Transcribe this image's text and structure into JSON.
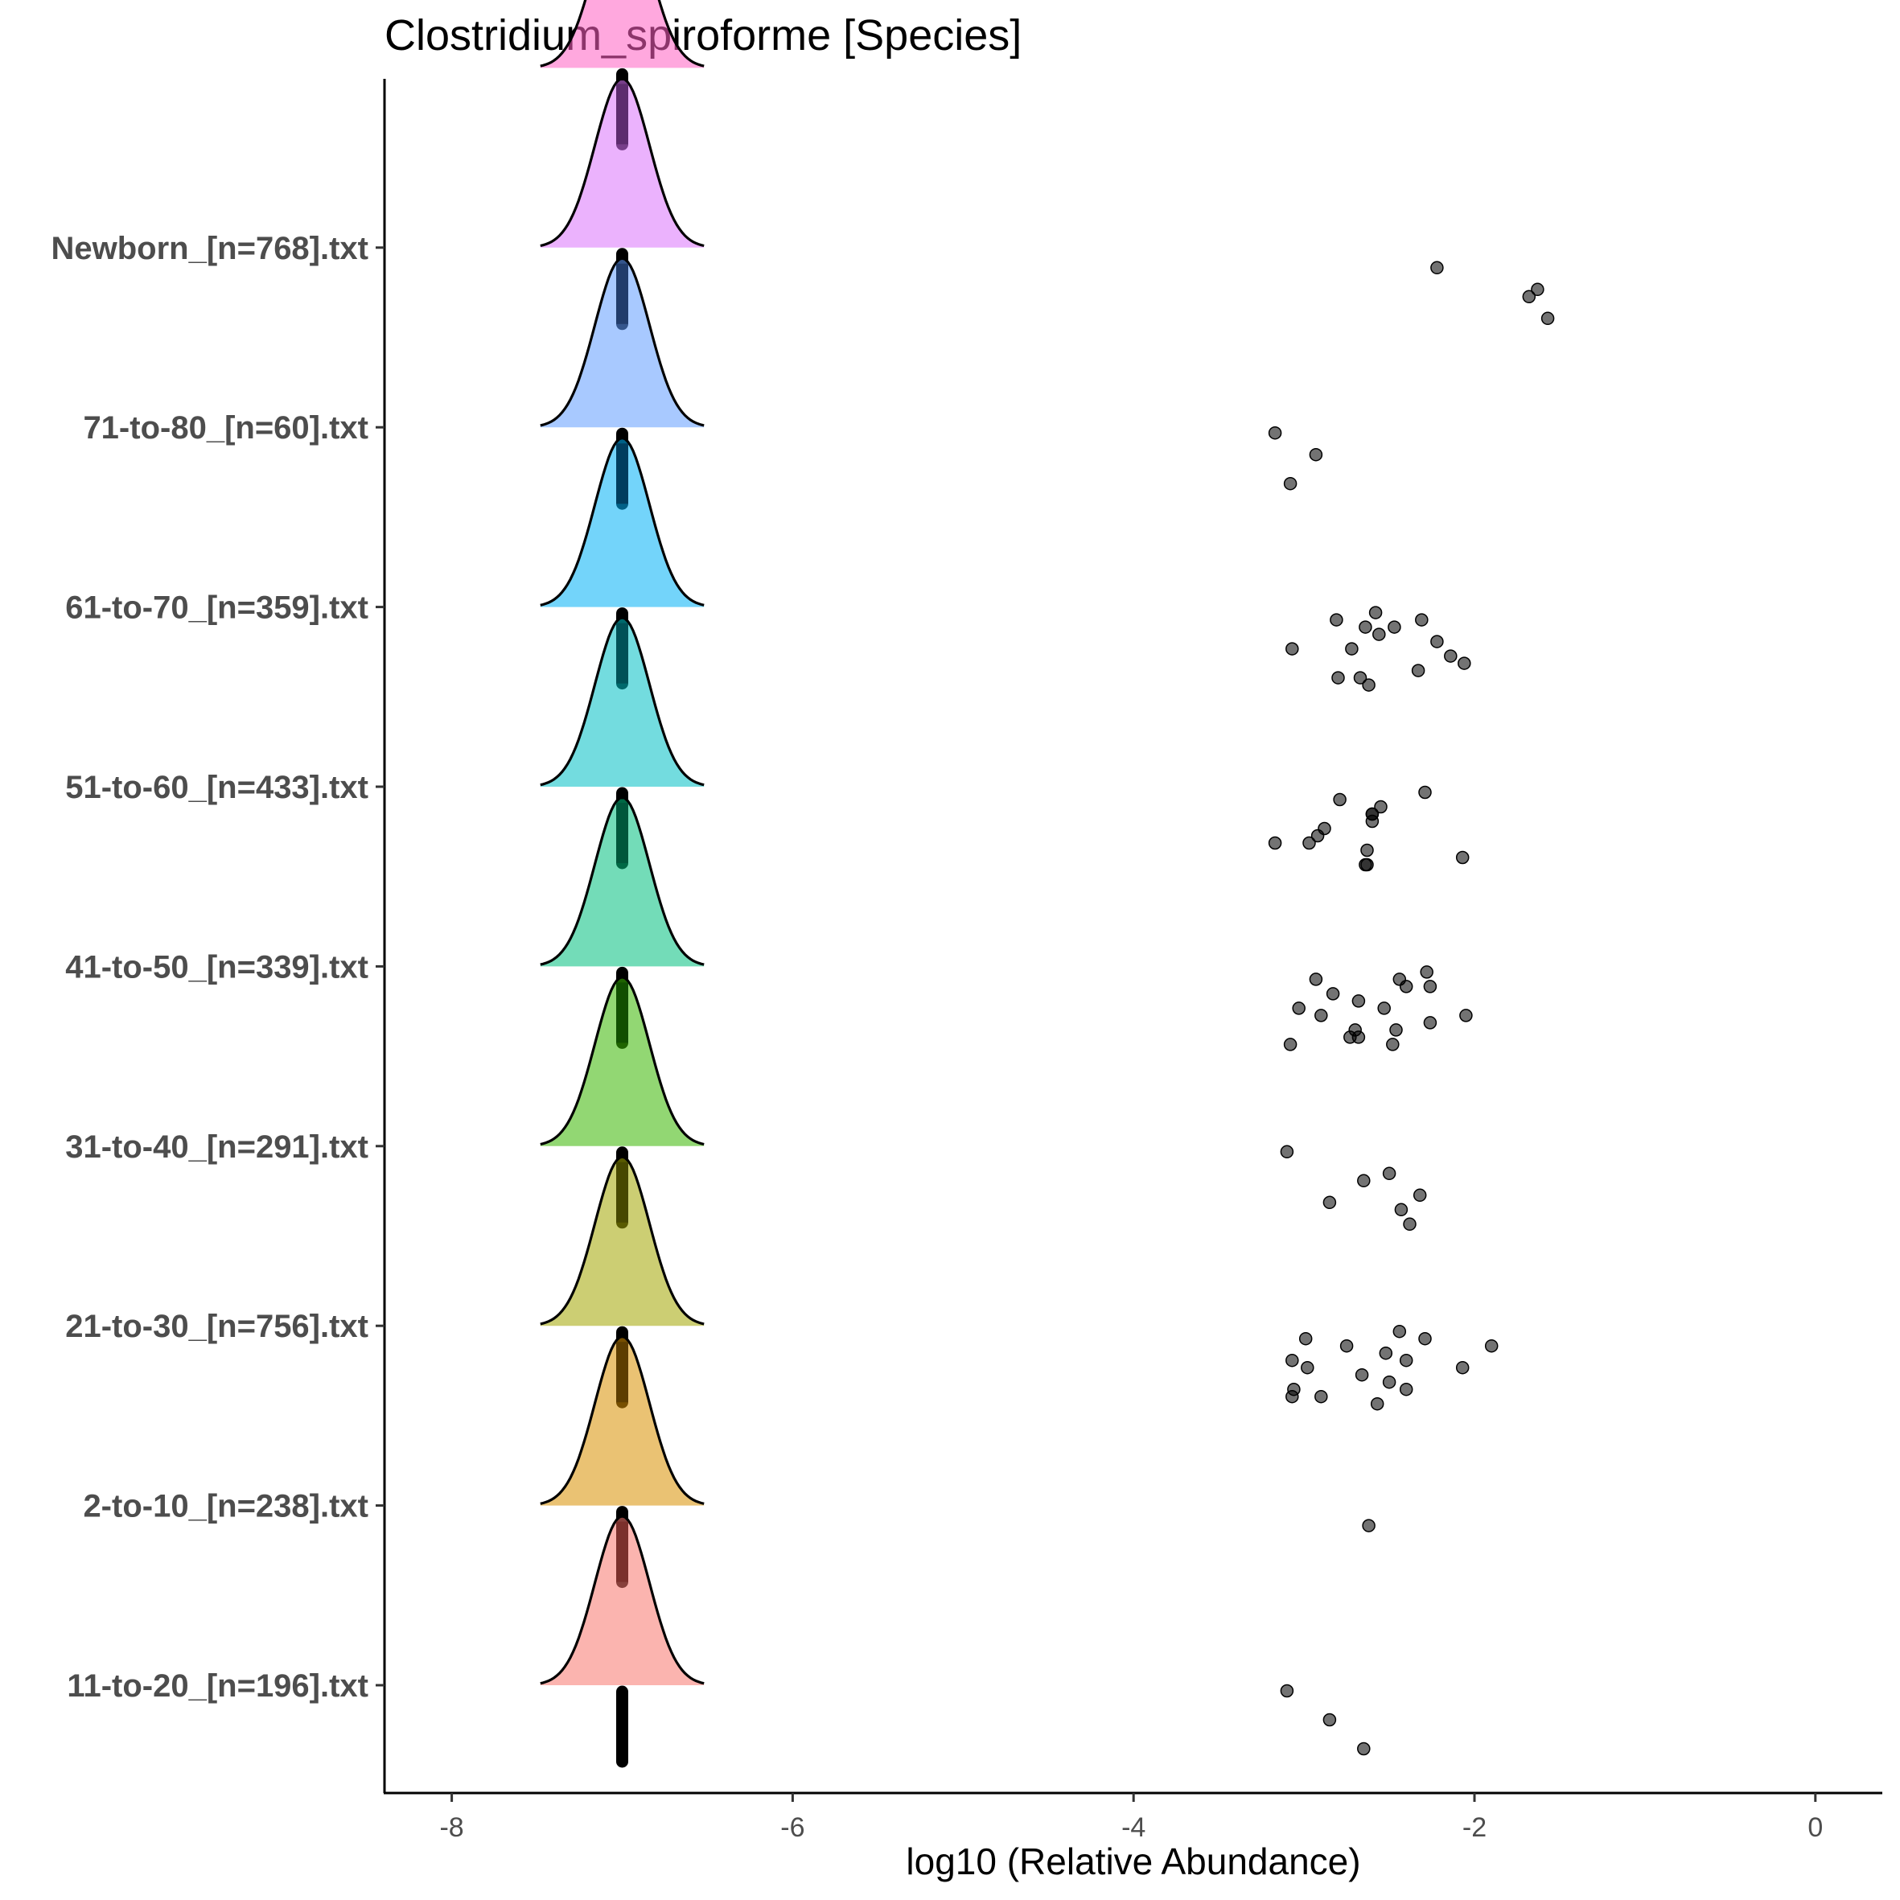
{
  "chart_data": {
    "type": "ridgeline",
    "title": "Clostridium_spiroforme [Species]",
    "xlabel": "log10 (Relative Abundance)",
    "ylabel": "",
    "xlim": [
      -8.4,
      0.4
    ],
    "xticks": [
      -8,
      -6,
      -4,
      -2,
      0
    ],
    "xtick_labels": [
      "-8",
      "-6",
      "-4",
      "-2",
      "0"
    ],
    "grid": false,
    "legend": "none",
    "density_center": -7,
    "groups": [
      {
        "label": "11-to-20_[n=196].txt",
        "color": "#F8766D",
        "median_color": "#7a2f2a",
        "points": [
          -3.1,
          -2.85,
          -2.65
        ]
      },
      {
        "label": "2-to-10_[n=238].txt",
        "color": "#D89000",
        "median_color": "#5a3b00",
        "points": [
          -2.62
        ]
      },
      {
        "label": "21-to-30_[n=756].txt",
        "color": "#A3A500",
        "median_color": "#454600",
        "points": [
          -3.07,
          -3.06,
          -2.99,
          -2.98,
          -2.9,
          -2.75,
          -2.66,
          -2.57,
          -2.52,
          -2.5,
          -2.44,
          -2.4,
          -2.4,
          -2.29,
          -2.07,
          -3.07,
          -1.9
        ]
      },
      {
        "label": "31-to-40_[n=291].txt",
        "color": "#39B600",
        "median_color": "#0f4d00",
        "points": [
          -2.32,
          -2.38,
          -2.5,
          -2.85,
          -3.1,
          -2.65,
          -2.43
        ]
      },
      {
        "label": "41-to-50_[n=339].txt",
        "color": "#00BF7D",
        "median_color": "#00553a",
        "points": [
          -2.46,
          -2.44,
          -2.53,
          -2.68,
          -2.26,
          -2.05,
          -3.08,
          -2.83,
          -2.26,
          -2.28,
          -2.68,
          -2.7,
          -2.93,
          -3.03,
          -2.73,
          -2.4,
          -2.9,
          -2.48
        ]
      },
      {
        "label": "51-to-60_[n=433].txt",
        "color": "#00BFC4",
        "median_color": "#004f55",
        "points": [
          -2.64,
          -2.6,
          -2.97,
          -2.29,
          -2.6,
          -2.63,
          -2.79,
          -2.88,
          -2.07,
          -2.55,
          -2.92,
          -2.63,
          -2.6,
          -3.17
        ]
      },
      {
        "label": "61-to-70_[n=359].txt",
        "color": "#00B0F6",
        "median_color": "#003a5a",
        "points": [
          -2.31,
          -2.72,
          -2.67,
          -2.47,
          -2.14,
          -2.62,
          -2.56,
          -2.06,
          -2.58,
          -2.22,
          -2.33,
          -2.81,
          -3.07,
          -2.8,
          -2.64
        ]
      },
      {
        "label": "71-to-80_[n=60].txt",
        "color": "#619CFF",
        "median_color": "#1f3a66",
        "points": [
          -2.93,
          -3.08,
          -3.17
        ]
      },
      {
        "label": "Newborn_[n=768].txt",
        "color": "#DB72FB",
        "median_color": "#5a2a6a",
        "points": [
          -1.63,
          -1.57,
          -2.22,
          -1.68
        ]
      },
      {
        "label": "",
        "color": "#FF61C3",
        "median_color": "#6a2050",
        "points": []
      }
    ]
  }
}
